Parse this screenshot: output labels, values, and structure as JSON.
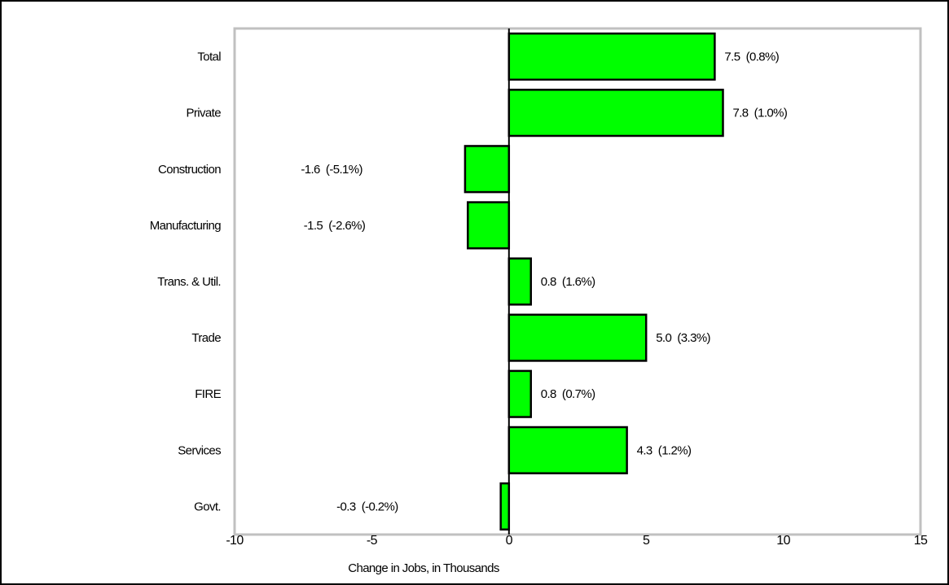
{
  "chart_data": {
    "type": "bar",
    "orientation": "horizontal",
    "categories": [
      "Total",
      "Private",
      "Construction",
      "Manufacturing",
      "Trans. & Util.",
      "Trade",
      "FIRE",
      "Services",
      "Govt."
    ],
    "values": [
      7.5,
      7.8,
      -1.6,
      -1.5,
      0.8,
      5.0,
      0.8,
      4.3,
      -0.3
    ],
    "data_labels": [
      "7.5  (0.8%)",
      "7.8  (1.0%)",
      "-1.6  (-5.1%)",
      "-1.5  (-2.6%)",
      "0.8  (1.6%)",
      "5.0  (3.3%)",
      "0.8  (0.7%)",
      "4.3  (1.2%)",
      "-0.3  (-0.2%)"
    ],
    "xlabel": "Change in Jobs, in Thousands",
    "ylabel": "",
    "xlim": [
      -10,
      15
    ],
    "xticks": [
      -10,
      -5,
      0,
      5,
      10,
      15
    ],
    "grid": false,
    "legend": "none",
    "colors": {
      "bar": "#00ff00",
      "bar_edge": "#000000",
      "plot_border": "#c0c0c0"
    }
  }
}
